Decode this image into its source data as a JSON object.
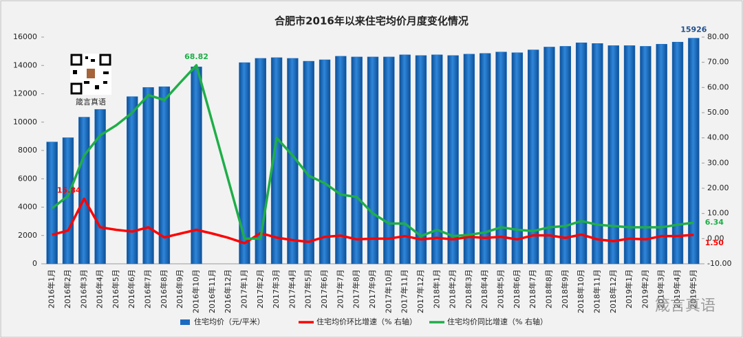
{
  "chart_data": {
    "type": "bar-line",
    "title": "合肥市2016年以来住宅均价月度变化情况",
    "categories": [
      "2016年1月",
      "2016年2月",
      "2016年3月",
      "2016年4月",
      "2016年5月",
      "2016年6月",
      "2016年7月",
      "2016年8月",
      "2016年9月",
      "2016年10月",
      "2016年11月",
      "2016年12月",
      "2017年1月",
      "2017年2月",
      "2017年3月",
      "2017年4月",
      "2017年5月",
      "2017年6月",
      "2017年7月",
      "2017年8月",
      "2017年9月",
      "2017年10月",
      "2017年11月",
      "2017年12月",
      "2018年1月",
      "2018年2月",
      "2018年3月",
      "2018年4月",
      "2018年5月",
      "2018年6月",
      "2018年7月",
      "2018年8月",
      "2018年9月",
      "2018年10月",
      "2018年11月",
      "2018年12月",
      "2019年1月",
      "2019年2月",
      "2019年3月",
      "2019年4月",
      "2019年5月"
    ],
    "series": [
      {
        "name": "住宅均价（元/平米）",
        "type": "bar",
        "color": "#1b6cc0",
        "values": [
          8600,
          8900,
          10350,
          10900,
          null,
          11800,
          12450,
          12500,
          null,
          13900,
          null,
          null,
          14200,
          14500,
          14550,
          14500,
          14300,
          14400,
          14650,
          14600,
          14600,
          14600,
          14750,
          14700,
          14750,
          14700,
          14800,
          14850,
          14950,
          14900,
          15100,
          15300,
          15350,
          15600,
          15550,
          15400,
          15400,
          15350,
          15500,
          15650,
          15926
        ],
        "value_labels": [
          null,
          null,
          null,
          null,
          null,
          null,
          null,
          null,
          null,
          null,
          null,
          null,
          null,
          null,
          null,
          null,
          null,
          null,
          null,
          null,
          null,
          null,
          null,
          null,
          null,
          null,
          null,
          null,
          null,
          null,
          null,
          null,
          null,
          null,
          null,
          null,
          null,
          null,
          null,
          null,
          15926
        ]
      },
      {
        "name": "住宅均价环比增速（% 右轴）",
        "type": "line",
        "axis": "y2",
        "color": "#ff0000",
        "values": [
          1.5,
          3.2,
          15.84,
          4.5,
          3.5,
          2.8,
          4.5,
          0.5,
          2,
          3.5,
          2,
          0.3,
          -1.8,
          2.2,
          0.4,
          -0.6,
          -1.3,
          0.7,
          1.2,
          -0.3,
          0,
          0,
          1,
          -0.3,
          0.3,
          -0.3,
          0.7,
          0.3,
          0.7,
          -0.3,
          1.3,
          1.3,
          0.3,
          1.6,
          -0.3,
          -1,
          0,
          -0.3,
          1,
          1,
          1.5
        ],
        "value_labels": [
          null,
          null,
          "15.84",
          null,
          null,
          null,
          null,
          null,
          null,
          null,
          null,
          null,
          null,
          null,
          null,
          null,
          null,
          null,
          null,
          null,
          null,
          null,
          null,
          null,
          null,
          null,
          null,
          null,
          null,
          null,
          null,
          null,
          null,
          null,
          null,
          null,
          null,
          null,
          null,
          null,
          "1.50"
        ]
      },
      {
        "name": "住宅均价同比增速（% 右轴）",
        "type": "line",
        "axis": "y2",
        "color": "#1fae48",
        "values": [
          12,
          17,
          33,
          41,
          45,
          50,
          57,
          55,
          62,
          68.82,
          46,
          23,
          0,
          0,
          40,
          33,
          25,
          22,
          17.5,
          16.5,
          10,
          6,
          6,
          1,
          3.5,
          1,
          1.5,
          2.5,
          4.5,
          3.5,
          3,
          4.5,
          5,
          7,
          5.5,
          5,
          4.5,
          4.5,
          4.5,
          5.5,
          6.34
        ],
        "value_labels": [
          null,
          null,
          null,
          null,
          null,
          null,
          null,
          null,
          null,
          "68.82",
          null,
          null,
          null,
          null,
          null,
          null,
          null,
          null,
          null,
          null,
          null,
          null,
          null,
          null,
          null,
          null,
          null,
          null,
          null,
          null,
          null,
          null,
          null,
          null,
          null,
          null,
          null,
          null,
          null,
          null,
          "6.34"
        ]
      }
    ],
    "ylim": [
      0,
      16000
    ],
    "yticks": [
      0,
      2000,
      4000,
      6000,
      8000,
      10000,
      12000,
      14000,
      16000
    ],
    "y2lim": [
      -10,
      80
    ],
    "y2ticks": [
      {
        "value": -10,
        "label": "-10.00"
      },
      {
        "value": 0,
        "label": "0.00"
      },
      {
        "value": 10,
        "label": "10.00"
      },
      {
        "value": 20,
        "label": "20.00"
      },
      {
        "value": 30,
        "label": "30.00"
      },
      {
        "value": 40,
        "label": "40.00"
      },
      {
        "value": 50,
        "label": "50.00"
      },
      {
        "value": 60,
        "label": "60.00"
      },
      {
        "value": 70,
        "label": "70.00"
      },
      {
        "value": 80,
        "label": "80.00"
      }
    ],
    "grid": false,
    "legend": "bottom",
    "annotations": [
      "箴言真语",
      "箴言真语"
    ]
  }
}
